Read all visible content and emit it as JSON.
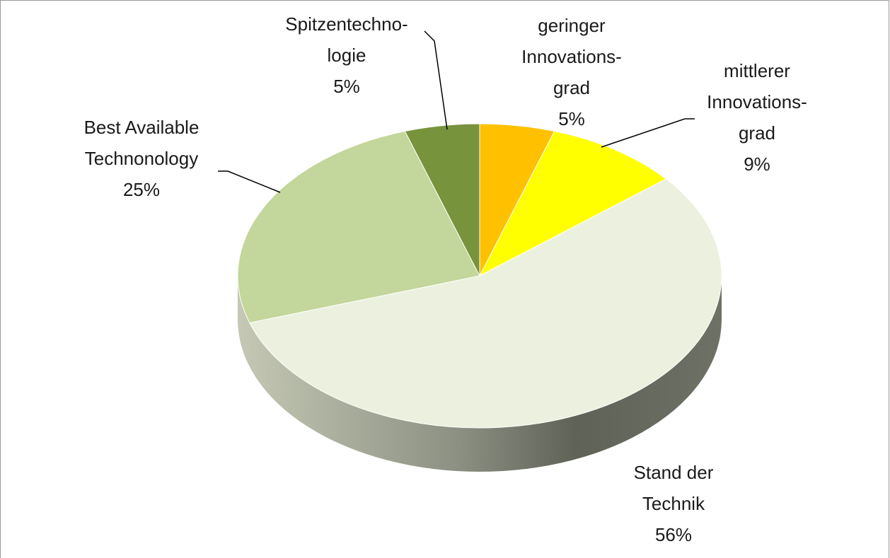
{
  "chart_data": {
    "type": "pie",
    "categories": [
      "geringer\nInnovations-\ngrad",
      "mittlerer\nInnovations-\ngrad",
      "Stand der\nTechnik",
      "Best Available\nTechnonology",
      "Spitzentechno-\nlogie"
    ],
    "values": [
      5,
      9,
      56,
      25,
      5
    ],
    "value_labels": [
      "5%",
      "9%",
      "56%",
      "25%",
      "5%"
    ],
    "colors": [
      "#ffc000",
      "#ffff00",
      "#ebf1de",
      "#c3d69b",
      "#77933c"
    ]
  }
}
